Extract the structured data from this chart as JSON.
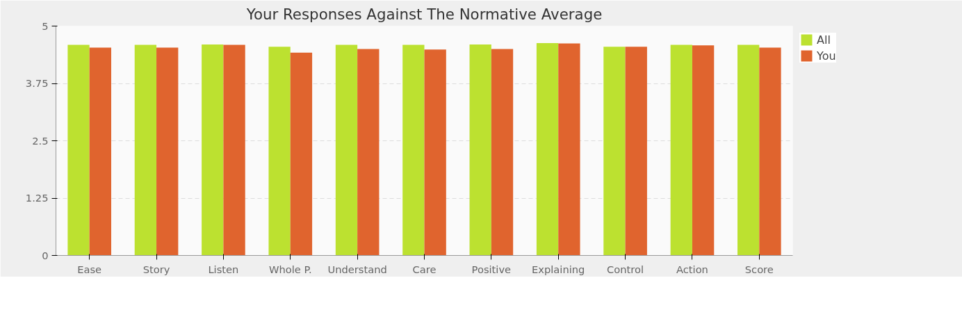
{
  "chart_data": {
    "type": "bar",
    "title": "Your Responses Against The Normative Average",
    "categories": [
      "Ease",
      "Story",
      "Listen",
      "Whole P.",
      "Understand",
      "Care",
      "Positive",
      "Explaining",
      "Control",
      "Action",
      "Score"
    ],
    "series": [
      {
        "name": "All",
        "color": "#bce130",
        "values": [
          4.59,
          4.59,
          4.6,
          4.55,
          4.59,
          4.59,
          4.6,
          4.63,
          4.55,
          4.59,
          4.59
        ]
      },
      {
        "name": "You",
        "color": "#e0642e",
        "values": [
          4.53,
          4.53,
          4.59,
          4.42,
          4.5,
          4.49,
          4.5,
          4.62,
          4.55,
          4.58,
          4.53
        ]
      }
    ],
    "ylim": [
      0,
      5
    ],
    "yticks": [
      0,
      1.25,
      2.5,
      3.75,
      5
    ],
    "grid": "y",
    "legend": "top right"
  }
}
